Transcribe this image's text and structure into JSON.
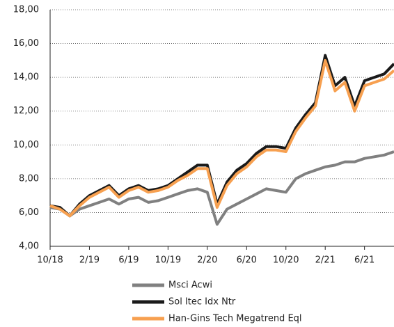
{
  "chart_data": {
    "type": "line",
    "categories": [
      "10/18",
      null,
      null,
      null,
      "2/19",
      null,
      null,
      null,
      "6/19",
      null,
      null,
      null,
      "10/19",
      null,
      null,
      null,
      "2/20",
      null,
      null,
      null,
      "6/20",
      null,
      null,
      null,
      "10/20",
      null,
      null,
      null,
      "2/21",
      null,
      null,
      null,
      "6/21",
      null,
      null,
      null
    ],
    "series": [
      {
        "name": "Msci Acwi",
        "color": "#808080",
        "values": [
          6.3,
          6.2,
          5.8,
          6.2,
          6.4,
          6.6,
          6.8,
          6.5,
          6.8,
          6.9,
          6.6,
          6.7,
          6.9,
          7.1,
          7.3,
          7.4,
          7.2,
          5.3,
          6.2,
          6.5,
          6.8,
          7.1,
          7.4,
          7.3,
          7.2,
          8.0,
          8.3,
          8.5,
          8.7,
          8.8,
          9.0,
          9.0,
          9.2,
          9.3,
          9.4,
          9.6
        ]
      },
      {
        "name": "Sol Itec Idx Ntr",
        "color": "#1a1a1a",
        "values": [
          6.4,
          6.3,
          5.8,
          6.5,
          7.0,
          7.3,
          7.6,
          7.0,
          7.4,
          7.6,
          7.3,
          7.4,
          7.6,
          8.0,
          8.4,
          8.8,
          8.8,
          6.5,
          7.8,
          8.5,
          8.9,
          9.5,
          9.9,
          9.9,
          9.8,
          11.0,
          11.8,
          12.5,
          15.3,
          13.5,
          14.0,
          12.3,
          13.8,
          14.0,
          14.2,
          14.8
        ]
      },
      {
        "name": "Han-Gins Tech Megatrend Eql",
        "color": "#f7a050",
        "values": [
          6.4,
          6.2,
          5.8,
          6.4,
          6.9,
          7.2,
          7.5,
          6.9,
          7.3,
          7.5,
          7.2,
          7.3,
          7.5,
          7.9,
          8.2,
          8.6,
          8.6,
          6.3,
          7.6,
          8.3,
          8.7,
          9.3,
          9.7,
          9.7,
          9.6,
          10.8,
          11.6,
          12.3,
          15.0,
          13.2,
          13.7,
          12.0,
          13.5,
          13.7,
          13.9,
          14.4
        ]
      }
    ],
    "ylim": [
      4,
      18
    ],
    "yticks": [
      {
        "value": 4,
        "label": "4,00"
      },
      {
        "value": 6,
        "label": "6,00"
      },
      {
        "value": 8,
        "label": "8,00"
      },
      {
        "value": 10,
        "label": "10,00"
      },
      {
        "value": 12,
        "label": "12,00"
      },
      {
        "value": 14,
        "label": "14,00"
      },
      {
        "value": 16,
        "label": "16,00"
      },
      {
        "value": 18,
        "label": "18,00"
      }
    ],
    "grid": true
  }
}
